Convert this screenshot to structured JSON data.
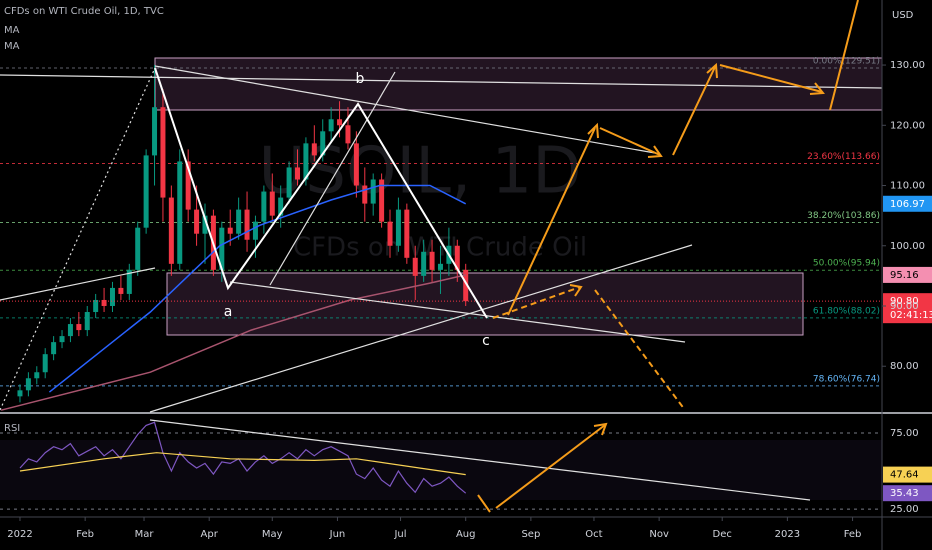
{
  "chart_data": {
    "type": "candlestick",
    "title": "CFDs on WTI Crude Oil, 1D, TVC",
    "indicators": [
      "MA",
      "MA"
    ],
    "watermark": [
      "USOIL, 1D",
      "CFDs on WTI Crude Oil"
    ],
    "currency": "USD",
    "wave_labels": [
      "a",
      "b",
      "c"
    ],
    "up_color": "#089981",
    "down_color": "#f23645",
    "x": [
      0,
      4,
      8,
      12,
      16,
      20,
      24,
      28,
      32,
      36,
      40,
      44,
      48,
      52,
      56,
      60,
      64,
      68,
      72,
      76,
      80,
      84,
      88,
      92,
      96,
      100,
      104,
      108,
      112,
      116,
      120,
      124,
      128,
      132,
      136,
      140,
      144,
      148,
      152,
      156,
      160,
      164,
      168,
      172,
      176,
      180,
      184,
      188,
      192,
      196,
      200,
      204,
      208,
      212
    ],
    "open": [
      75,
      76,
      78,
      79,
      82,
      84,
      85,
      87,
      86,
      89,
      91,
      90,
      93,
      92,
      96,
      103,
      115,
      123,
      108,
      97,
      114,
      106,
      102,
      105,
      96,
      103,
      102,
      106,
      101,
      104,
      109,
      105,
      108,
      113,
      111,
      117,
      115,
      119,
      121,
      120,
      117,
      110,
      107,
      111,
      104,
      100,
      106,
      98,
      95,
      99,
      96,
      97,
      100,
      96
    ],
    "high": [
      77,
      79,
      80,
      83,
      85,
      86,
      88,
      89,
      90,
      92,
      93,
      94,
      95,
      97,
      104,
      116,
      130,
      126,
      110,
      116,
      116,
      110,
      107,
      106,
      104,
      106,
      108,
      109,
      105,
      110,
      112,
      110,
      114,
      116,
      118,
      120,
      121,
      123,
      124,
      123,
      119,
      113,
      112,
      112,
      106,
      108,
      107,
      100,
      101,
      101,
      100,
      103,
      101,
      97
    ],
    "low": [
      74,
      75,
      77,
      78,
      81,
      83,
      84,
      85,
      85,
      88,
      89,
      89,
      91,
      91,
      95,
      102,
      110,
      104,
      95,
      96,
      104,
      100,
      97,
      95,
      94,
      100,
      101,
      99,
      98,
      102,
      104,
      103,
      107,
      110,
      110,
      114,
      114,
      117,
      118,
      116,
      108,
      104,
      105,
      103,
      98,
      99,
      97,
      91,
      94,
      94,
      92,
      95,
      94,
      90
    ],
    "close": [
      76,
      78,
      79,
      82,
      84,
      85,
      87,
      86,
      89,
      91,
      90,
      93,
      92,
      96,
      103,
      115,
      123,
      108,
      97,
      114,
      106,
      102,
      105,
      96,
      103,
      102,
      106,
      101,
      104,
      109,
      105,
      108,
      113,
      111,
      117,
      115,
      119,
      121,
      120,
      117,
      110,
      107,
      111,
      104,
      100,
      106,
      98,
      95,
      99,
      96,
      97,
      100,
      96,
      90.8
    ],
    "last_label": "90.80",
    "countdown": "02:41:13",
    "ma": [
      {
        "name": "MA",
        "color": "#2962ff",
        "x": [
          14,
          62,
          95,
          114,
          148,
          171,
          195,
          212
        ],
        "values": [
          75.7,
          89,
          100,
          103.4,
          107.6,
          110,
          110,
          106.97
        ],
        "last_label": "106.97"
      },
      {
        "name": "MA",
        "color": "#a8546e",
        "x": [
          -9,
          62,
          110,
          157,
          195,
          212
        ],
        "values": [
          72.7,
          79,
          86,
          91,
          93.8,
          95.16
        ],
        "last_label": "95.16"
      }
    ],
    "fib": [
      {
        "label": "0.00%(129.51)",
        "value": 129.51,
        "color": "#787b86"
      },
      {
        "label": "23.60%(113.66)",
        "value": 113.66,
        "color": "#f23645"
      },
      {
        "label": "38.20%(103.86)",
        "value": 103.86,
        "color": "#81c784"
      },
      {
        "label": "50.00%(95.94)",
        "value": 95.94,
        "color": "#4caf50"
      },
      {
        "label": "61.80%(88.02)",
        "value": 88.02,
        "color": "#089981"
      },
      {
        "label": "78.60%(76.74)",
        "value": 76.74,
        "color": "#64b5f6"
      }
    ],
    "xlim": [
      -9.5,
      410
    ],
    "xticks": [
      {
        "value": 0,
        "label": "2022"
      },
      {
        "value": 31,
        "label": "Feb"
      },
      {
        "value": 59,
        "label": "Mar"
      },
      {
        "value": 90,
        "label": "Apr"
      },
      {
        "value": 120,
        "label": "May"
      },
      {
        "value": 151,
        "label": "Jun"
      },
      {
        "value": 181,
        "label": "Jul"
      },
      {
        "value": 212,
        "label": "Aug"
      },
      {
        "value": 243,
        "label": "Sep"
      },
      {
        "value": 273,
        "label": "Oct"
      },
      {
        "value": 304,
        "label": "Nov"
      },
      {
        "value": 334,
        "label": "Dec"
      },
      {
        "value": 365,
        "label": "2023"
      },
      {
        "value": 396,
        "label": "Feb"
      }
    ],
    "ylim": [
      72.4,
      140.8
    ],
    "yticks": [
      {
        "value": 80,
        "label": "80.00"
      },
      {
        "value": 90,
        "label": "90.00"
      },
      {
        "value": 100,
        "label": "100.00"
      },
      {
        "value": 110,
        "label": "110.00"
      },
      {
        "value": 120,
        "label": "120.00"
      },
      {
        "value": 130,
        "label": "130.00"
      }
    ],
    "rsi": {
      "name": "RSI",
      "color": "#7e57c2",
      "values": [
        52,
        58,
        56,
        62,
        66,
        64,
        68,
        60,
        63,
        66,
        60,
        64,
        58,
        66,
        74,
        80,
        82,
        62,
        50,
        62,
        56,
        52,
        55,
        48,
        56,
        55,
        58,
        50,
        56,
        60,
        55,
        58,
        62,
        58,
        64,
        60,
        64,
        66,
        63,
        60,
        48,
        45,
        52,
        44,
        40,
        50,
        42,
        36,
        45,
        40,
        42,
        46,
        40,
        35.43
      ],
      "last_label": "35.43",
      "ma": {
        "color": "#f7d154",
        "x": [
          0,
          40,
          65,
          100,
          140,
          160,
          190,
          212
        ],
        "values": [
          50,
          58,
          62,
          58,
          57,
          58,
          52,
          47.64
        ],
        "last_label": "47.64"
      },
      "ylim": [
        21.1,
        86.8
      ],
      "yticks": [
        {
          "value": 25,
          "label": "25.00"
        },
        {
          "value": 75,
          "label": "75.00"
        }
      ]
    }
  }
}
